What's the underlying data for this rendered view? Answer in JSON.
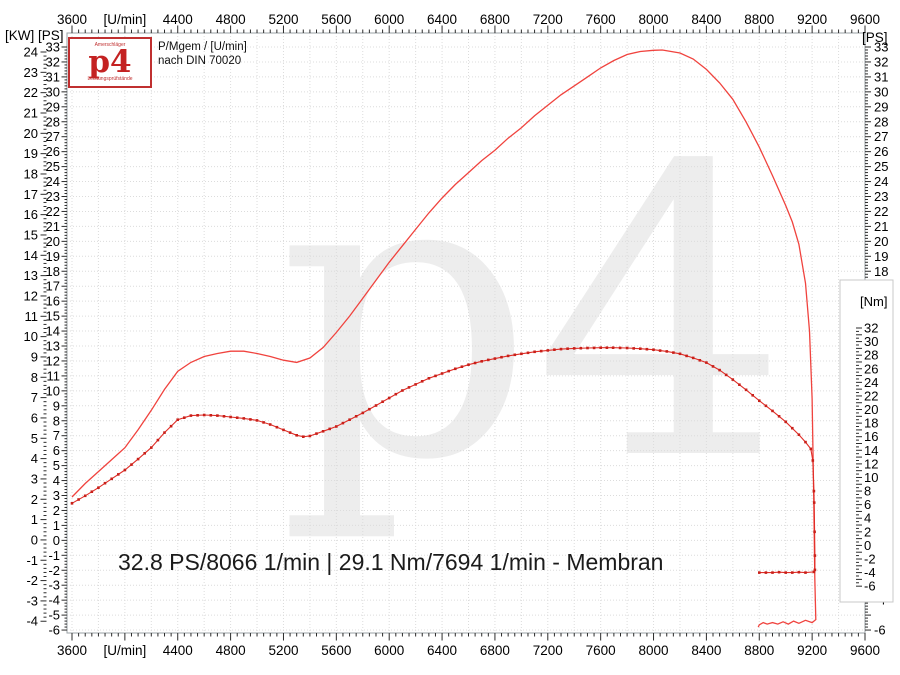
{
  "logo": {
    "top_text": "Amerschläger",
    "brand": "p4",
    "bottom_text": "Leistungsprüfstände"
  },
  "header": {
    "line1": "P/Mgem / [U/min]",
    "line2": "nach DIN 70020"
  },
  "watermark": "p4",
  "annotation": "32.8 PS/8066 1/min | 29.1 Nm/7694 1/min - Membran",
  "axis_unit_labels": {
    "left_kw": "[KW]",
    "left_ps": "[PS]",
    "right_ps": "[PS]"
  },
  "chart_data": {
    "type": "line",
    "title": "",
    "grid": true,
    "legend": "none",
    "x_axis": {
      "label": "[U/min]",
      "min": 3600,
      "max": 9600,
      "major": 400,
      "minor": 50,
      "tick_labels": [
        "3600",
        "[U/min]",
        "4400",
        "4800",
        "5200",
        "5600",
        "6000",
        "6400",
        "6800",
        "7200",
        "7600",
        "8000",
        "8400",
        "8800",
        "9200",
        "9600"
      ]
    },
    "left_axis_kw": {
      "label": "[KW]",
      "min": -4,
      "max": 24,
      "major": 1,
      "minor": 0.2
    },
    "left_axis_ps": {
      "label": "[PS]",
      "min": -6,
      "max": 33,
      "major": 1,
      "minor": 0.2
    },
    "right_axis_ps": {
      "label": "[PS]",
      "min": -6,
      "max": 33,
      "major": 1,
      "minor": 0.2,
      "hidden_labels": [
        -5
      ]
    },
    "right_axis_nm": {
      "label": "[Nm]",
      "min": -6,
      "max": 32,
      "major": 1,
      "minor": 0.5,
      "label_step": 2
    },
    "peaks": {
      "power": "32.8 PS/8066 1/min",
      "torque": "29.1 Nm/7694 1/min",
      "mode": "Membran"
    },
    "series": [
      {
        "name": "power",
        "unit": "PS",
        "axis": "ps",
        "color": "#f0433e",
        "marker": false,
        "points": [
          [
            3600,
            2.9
          ],
          [
            3700,
            3.8
          ],
          [
            3800,
            4.6
          ],
          [
            3900,
            5.4
          ],
          [
            4000,
            6.2
          ],
          [
            4100,
            7.4
          ],
          [
            4200,
            8.7
          ],
          [
            4300,
            10.1
          ],
          [
            4400,
            11.3
          ],
          [
            4500,
            11.9
          ],
          [
            4600,
            12.3
          ],
          [
            4700,
            12.5
          ],
          [
            4800,
            12.65
          ],
          [
            4900,
            12.65
          ],
          [
            5000,
            12.5
          ],
          [
            5100,
            12.3
          ],
          [
            5200,
            12.05
          ],
          [
            5300,
            11.9
          ],
          [
            5400,
            12.2
          ],
          [
            5500,
            12.9
          ],
          [
            5600,
            13.9
          ],
          [
            5700,
            15.0
          ],
          [
            5800,
            16.2
          ],
          [
            5900,
            17.4
          ],
          [
            6000,
            18.6
          ],
          [
            6100,
            19.7
          ],
          [
            6200,
            20.8
          ],
          [
            6300,
            21.9
          ],
          [
            6400,
            22.9
          ],
          [
            6500,
            23.8
          ],
          [
            6600,
            24.6
          ],
          [
            6700,
            25.4
          ],
          [
            6800,
            26.1
          ],
          [
            6900,
            26.9
          ],
          [
            7000,
            27.6
          ],
          [
            7100,
            28.4
          ],
          [
            7200,
            29.1
          ],
          [
            7300,
            29.8
          ],
          [
            7400,
            30.4
          ],
          [
            7500,
            31.0
          ],
          [
            7600,
            31.6
          ],
          [
            7700,
            32.1
          ],
          [
            7800,
            32.5
          ],
          [
            7900,
            32.7
          ],
          [
            8000,
            32.78
          ],
          [
            8066,
            32.8
          ],
          [
            8200,
            32.6
          ],
          [
            8300,
            32.2
          ],
          [
            8400,
            31.5
          ],
          [
            8500,
            30.6
          ],
          [
            8600,
            29.5
          ],
          [
            8700,
            28.0
          ],
          [
            8800,
            26.3
          ],
          [
            8900,
            24.4
          ],
          [
            9000,
            22.4
          ],
          [
            9050,
            21.3
          ],
          [
            9100,
            19.8
          ],
          [
            9150,
            17.2
          ],
          [
            9180,
            14.0
          ],
          [
            9200,
            9.5
          ],
          [
            9212,
            3.0
          ],
          [
            9220,
            -2.5
          ],
          [
            9228,
            -5.3
          ],
          [
            9200,
            -5.5
          ],
          [
            9150,
            -5.35
          ],
          [
            9100,
            -5.55
          ],
          [
            9060,
            -5.4
          ],
          [
            9020,
            -5.6
          ],
          [
            8980,
            -5.45
          ],
          [
            8940,
            -5.6
          ],
          [
            8900,
            -5.5
          ],
          [
            8860,
            -5.6
          ],
          [
            8830,
            -5.5
          ],
          [
            8800,
            -5.65
          ],
          [
            8792,
            -5.8
          ]
        ]
      },
      {
        "name": "torque",
        "unit": "Nm",
        "axis": "nm",
        "color": "#e02d27",
        "marker": true,
        "points": [
          [
            3600,
            6.2
          ],
          [
            3700,
            7.3
          ],
          [
            3800,
            8.5
          ],
          [
            3900,
            9.8
          ],
          [
            4000,
            11.1
          ],
          [
            4100,
            12.7
          ],
          [
            4200,
            14.4
          ],
          [
            4300,
            16.6
          ],
          [
            4400,
            18.5
          ],
          [
            4500,
            19.1
          ],
          [
            4600,
            19.2
          ],
          [
            4700,
            19.1
          ],
          [
            4800,
            18.9
          ],
          [
            4900,
            18.7
          ],
          [
            5000,
            18.4
          ],
          [
            5100,
            17.8
          ],
          [
            5200,
            17.0
          ],
          [
            5300,
            16.2
          ],
          [
            5350,
            16.0
          ],
          [
            5400,
            16.1
          ],
          [
            5500,
            16.8
          ],
          [
            5600,
            17.5
          ],
          [
            5700,
            18.5
          ],
          [
            5800,
            19.5
          ],
          [
            5900,
            20.6
          ],
          [
            6000,
            21.7
          ],
          [
            6100,
            22.8
          ],
          [
            6200,
            23.7
          ],
          [
            6300,
            24.6
          ],
          [
            6400,
            25.3
          ],
          [
            6500,
            26.0
          ],
          [
            6600,
            26.6
          ],
          [
            6700,
            27.1
          ],
          [
            6800,
            27.5
          ],
          [
            6900,
            27.9
          ],
          [
            7000,
            28.2
          ],
          [
            7100,
            28.5
          ],
          [
            7200,
            28.7
          ],
          [
            7300,
            28.9
          ],
          [
            7400,
            29.0
          ],
          [
            7500,
            29.05
          ],
          [
            7600,
            29.1
          ],
          [
            7694,
            29.1
          ],
          [
            7800,
            29.05
          ],
          [
            7900,
            28.95
          ],
          [
            8000,
            28.8
          ],
          [
            8100,
            28.55
          ],
          [
            8200,
            28.2
          ],
          [
            8300,
            27.6
          ],
          [
            8400,
            26.9
          ],
          [
            8500,
            25.8
          ],
          [
            8600,
            24.4
          ],
          [
            8700,
            22.9
          ],
          [
            8800,
            21.3
          ],
          [
            8900,
            19.8
          ],
          [
            9000,
            18.2
          ],
          [
            9100,
            16.3
          ],
          [
            9150,
            15.2
          ],
          [
            9190,
            14.2
          ],
          [
            9205,
            12.5
          ],
          [
            9213,
            8.0
          ],
          [
            9216,
            6.3
          ],
          [
            9219,
            2.0
          ],
          [
            9221,
            -1.5
          ],
          [
            9221,
            -3.6
          ],
          [
            9213,
            -3.9
          ],
          [
            9150,
            -4.0
          ],
          [
            9100,
            -3.95
          ],
          [
            9050,
            -4.0
          ],
          [
            9000,
            -4.0
          ],
          [
            8950,
            -3.95
          ],
          [
            8900,
            -4.0
          ],
          [
            8850,
            -4.0
          ],
          [
            8800,
            -4.0
          ]
        ]
      }
    ]
  }
}
